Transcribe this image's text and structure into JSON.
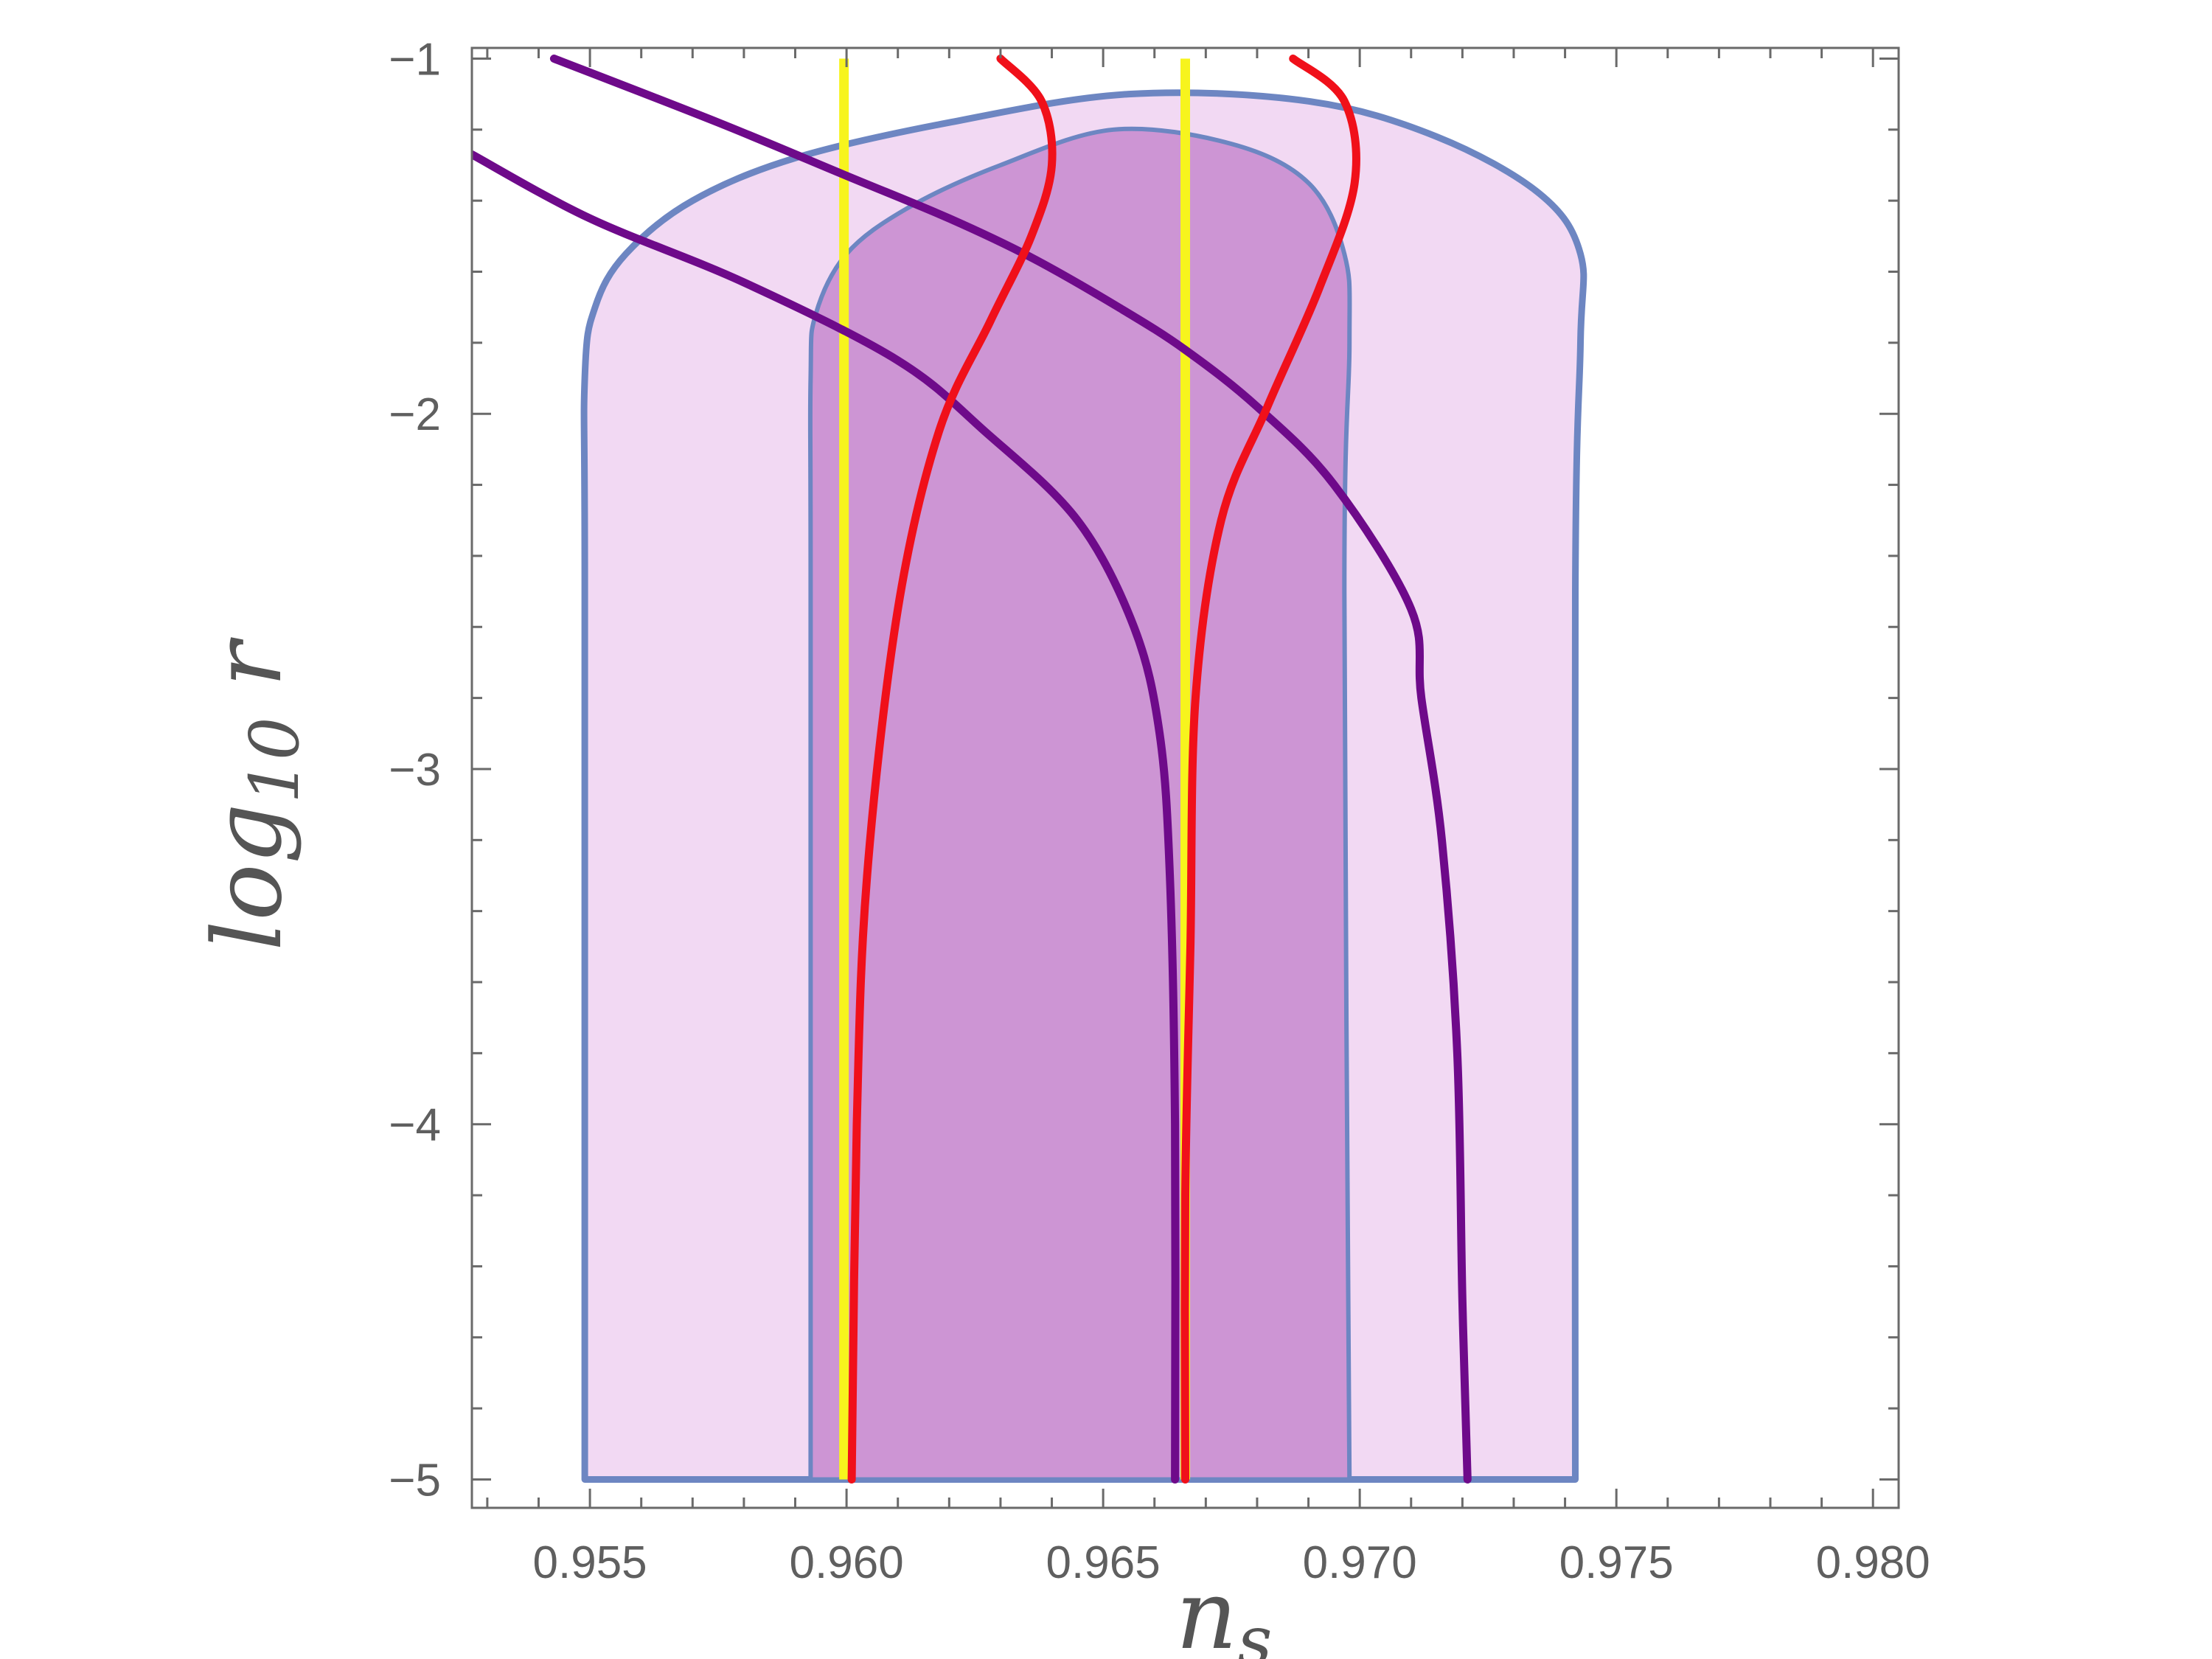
{
  "chart_data": {
    "type": "line",
    "title": "",
    "xlabel": "n_s",
    "ylabel": "log10 r",
    "xlim": [
      0.9527,
      0.9805
    ],
    "ylim": [
      -5.08,
      -0.97
    ],
    "xticks": [
      0.955,
      0.96,
      0.965,
      0.97,
      0.975,
      0.98
    ],
    "xtick_labels": [
      "0.955",
      "0.960",
      "0.965",
      "0.970",
      "0.975",
      "0.980"
    ],
    "yticks": [
      -1,
      -2,
      -3,
      -4,
      -5
    ],
    "ytick_labels": [
      "−1",
      "−2",
      "−3",
      "−4",
      "−5"
    ],
    "grid": false,
    "colors": {
      "region_outer": "#f2d9f3",
      "region_inner": "#cd95d4",
      "region_border": "#6d86c2",
      "purple": "#6e0a8a",
      "red": "#f0101a",
      "yellow": "#f7f41d",
      "axis": "#6a6a6a"
    },
    "regions": [
      {
        "level": "outer",
        "points": [
          [
            0.9549,
            -5.0
          ],
          [
            0.9549,
            -2.5
          ],
          [
            0.9549,
            -1.9
          ],
          [
            0.9551,
            -1.7
          ],
          [
            0.9557,
            -1.55
          ],
          [
            0.957,
            -1.4
          ],
          [
            0.959,
            -1.28
          ],
          [
            0.962,
            -1.18
          ],
          [
            0.9655,
            -1.1
          ],
          [
            0.969,
            -1.12
          ],
          [
            0.9715,
            -1.22
          ],
          [
            0.9735,
            -1.38
          ],
          [
            0.9743,
            -1.55
          ],
          [
            0.9743,
            -1.8
          ],
          [
            0.9742,
            -2.5
          ],
          [
            0.9742,
            -5.0
          ]
        ]
      },
      {
        "level": "inner",
        "points": [
          [
            0.9593,
            -5.0
          ],
          [
            0.9593,
            -2.5
          ],
          [
            0.9593,
            -1.9
          ],
          [
            0.9594,
            -1.72
          ],
          [
            0.96,
            -1.55
          ],
          [
            0.9612,
            -1.42
          ],
          [
            0.963,
            -1.3
          ],
          [
            0.9652,
            -1.2
          ],
          [
            0.9675,
            -1.24
          ],
          [
            0.969,
            -1.35
          ],
          [
            0.9697,
            -1.55
          ],
          [
            0.9698,
            -1.8
          ],
          [
            0.9697,
            -2.5
          ],
          [
            0.9698,
            -5.0
          ]
        ]
      }
    ],
    "series": [
      {
        "color": "purple",
        "points": [
          [
            0.9543,
            -1.0
          ],
          [
            0.9575,
            -1.18
          ],
          [
            0.96,
            -1.33
          ],
          [
            0.962,
            -1.45
          ],
          [
            0.9636,
            -1.56
          ],
          [
            0.9653,
            -1.7
          ],
          [
            0.9666,
            -1.82
          ],
          [
            0.968,
            -1.98
          ],
          [
            0.9695,
            -2.2
          ],
          [
            0.971,
            -2.55
          ],
          [
            0.9712,
            -2.8
          ],
          [
            0.9716,
            -3.2
          ],
          [
            0.9719,
            -3.8
          ],
          [
            0.972,
            -4.5
          ],
          [
            0.9721,
            -5.0
          ]
        ]
      },
      {
        "color": "purple",
        "points": [
          [
            0.9527,
            -1.27
          ],
          [
            0.955,
            -1.45
          ],
          [
            0.958,
            -1.63
          ],
          [
            0.961,
            -1.85
          ],
          [
            0.9627,
            -2.05
          ],
          [
            0.9645,
            -2.3
          ],
          [
            0.9656,
            -2.6
          ],
          [
            0.9661,
            -2.9
          ],
          [
            0.9663,
            -3.3
          ],
          [
            0.9664,
            -4.0
          ],
          [
            0.9664,
            -5.0
          ]
        ]
      },
      {
        "color": "red",
        "points": [
          [
            0.963,
            -1.0
          ],
          [
            0.9638,
            -1.12
          ],
          [
            0.964,
            -1.3
          ],
          [
            0.9636,
            -1.5
          ],
          [
            0.9628,
            -1.74
          ],
          [
            0.9618,
            -2.05
          ],
          [
            0.961,
            -2.55
          ],
          [
            0.9604,
            -3.3
          ],
          [
            0.9602,
            -4.0
          ],
          [
            0.9601,
            -5.0
          ]
        ]
      },
      {
        "color": "red",
        "points": [
          [
            0.9687,
            -1.0
          ],
          [
            0.9697,
            -1.12
          ],
          [
            0.9699,
            -1.35
          ],
          [
            0.9692,
            -1.65
          ],
          [
            0.9682,
            -1.98
          ],
          [
            0.9673,
            -2.3
          ],
          [
            0.9668,
            -2.8
          ],
          [
            0.9667,
            -3.5
          ],
          [
            0.9666,
            -4.2
          ],
          [
            0.9666,
            -5.0
          ]
        ]
      },
      {
        "color": "yellow",
        "points": [
          [
            0.95995,
            -1.0
          ],
          [
            0.95995,
            -5.0
          ]
        ]
      },
      {
        "color": "yellow",
        "points": [
          [
            0.9666,
            -1.0
          ],
          [
            0.9666,
            -5.0
          ]
        ]
      }
    ]
  }
}
